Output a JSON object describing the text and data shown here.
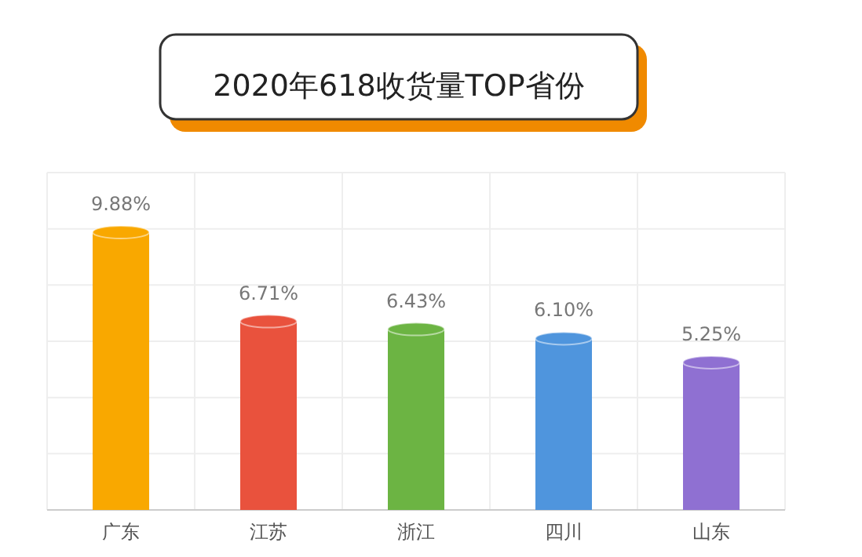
{
  "chart_data": {
    "type": "bar",
    "title": "2020年618收货量TOP省份",
    "categories": [
      "广东",
      "江苏",
      "浙江",
      "四川",
      "山东"
    ],
    "values": [
      9.88,
      6.71,
      6.43,
      6.1,
      5.25
    ],
    "colors": [
      "#f9a800",
      "#e9523d",
      "#6cb443",
      "#4f95dd",
      "#8f70d2"
    ],
    "value_labels": [
      "9.88%",
      "6.71%",
      "6.43%",
      "6.10%",
      "5.25%"
    ],
    "ylim": [
      0,
      12
    ],
    "yticks": [
      {
        "value": 0,
        "label": null
      },
      {
        "value": 2,
        "label": null
      },
      {
        "value": 4,
        "label": null
      },
      {
        "value": 6,
        "label": null
      },
      {
        "value": 8,
        "label": null
      },
      {
        "value": 10,
        "label": null
      },
      {
        "value": 12,
        "label": null
      }
    ],
    "grid": true,
    "tick_labels": "x"
  }
}
